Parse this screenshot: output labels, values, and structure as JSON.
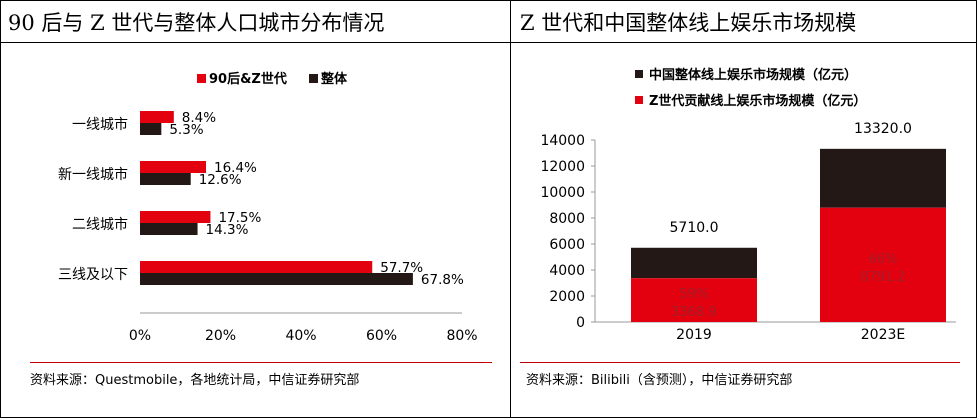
{
  "panels": {
    "left_title": "90 后与 Z 世代与整体人口城市分布情况",
    "right_title": "Z 世代和中国整体线上娱乐市场规模",
    "left_source": "资料来源：Questmobile，各地统计局，中信证券研究部",
    "right_source": "资料来源：Bilibili（含预测），中信证券研究部"
  },
  "colors": {
    "red": "#e3000f",
    "black": "#231815",
    "overlay_label": "#a3202a"
  },
  "chart_data": [
    {
      "type": "bar",
      "orientation": "horizontal",
      "categories": [
        "一线城市",
        "新一线城市",
        "二线城市",
        "三线及以下"
      ],
      "series": [
        {
          "name": "90后&Z世代",
          "values": [
            8.4,
            16.4,
            17.5,
            57.7
          ],
          "labels": [
            "8.4%",
            "16.4%",
            "17.5%",
            "57.7%"
          ],
          "color": "#e3000f"
        },
        {
          "name": "整体",
          "values": [
            5.3,
            12.6,
            14.3,
            67.8
          ],
          "labels": [
            "5.3%",
            "12.6%",
            "14.3%",
            "67.8%"
          ],
          "color": "#231815"
        }
      ],
      "xlim": [
        0,
        80
      ],
      "xticks": [
        "0%",
        "20%",
        "40%",
        "60%",
        "80%"
      ],
      "legend": "top"
    },
    {
      "type": "bar",
      "stacked": true,
      "categories": [
        "2019",
        "2023E"
      ],
      "series": [
        {
          "name": "中国整体线上娱乐市场规模（亿元）",
          "totals": [
            5710.0,
            13320.0
          ],
          "total_labels": [
            "5710.0",
            "13320.0"
          ],
          "color": "#231815"
        },
        {
          "name": "Z世代贡献线上娱乐市场规模（亿元）",
          "values": [
            3368.9,
            8791.2
          ],
          "value_labels": [
            "3368.9",
            "8791.2"
          ],
          "share_labels": [
            "59%",
            "66%"
          ],
          "color": "#e3000f"
        }
      ],
      "ylim": [
        0,
        14000
      ],
      "yticks": [
        "0",
        "2000",
        "4000",
        "6000",
        "8000",
        "10000",
        "12000",
        "14000"
      ],
      "legend": "top-left"
    }
  ]
}
